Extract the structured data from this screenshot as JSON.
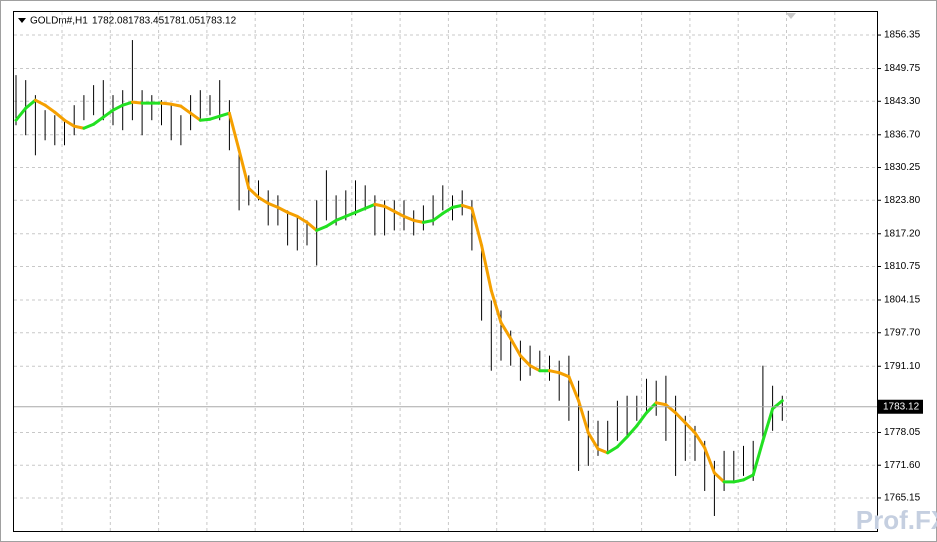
{
  "chart_data": {
    "type": "ohlc",
    "symbol": "GOLDm#,H1",
    "ohlc": [
      1782.08,
      1783.45,
      1781.05,
      1783.12
    ],
    "last_price": 1783.12,
    "watermark": "Prof.FX",
    "bar_color": "#000000",
    "up_color": "#22e022",
    "down_color": "#f5a000",
    "grid": true,
    "ylim": [
      1758.64,
      1860.89
    ],
    "yticks": [
      1856.35,
      1849.75,
      {
        "value": 1843.3,
        "label": "1843.30"
      },
      {
        "value": 1836.7,
        "label": "1836.70"
      },
      1830.25,
      {
        "value": 1823.8,
        "label": "1823.80"
      },
      {
        "value": 1817.2,
        "label": "1817.20"
      },
      1810.75,
      1804.15,
      {
        "value": 1797.7,
        "label": "1797.70"
      },
      {
        "value": 1791.1,
        "label": "1791.10"
      },
      1778.05,
      {
        "value": 1771.6,
        "label": "1771.60"
      },
      1765.15
    ],
    "high": [
      1848.45,
      1847.47,
      1844.51,
      1841.55,
      1840.56,
      1839.57,
      1842.53,
      1844.51,
      1846.48,
      1847.47,
      1844.51,
      1845.49,
      1855.36,
      1845.49,
      1844.51,
      1843.52,
      1842.53,
      1840.56,
      1844.51,
      1845.49,
      1844.51,
      1847.47,
      1843.52,
      1833.65,
      1828.71,
      1827.73,
      1825.75,
      1824.77,
      1821.81,
      1820.82,
      1819.83,
      1823.78,
      1829.7,
      1824.77,
      1825.75,
      1827.73,
      1826.74,
      1824.77,
      1823.78,
      1823.78,
      1823.78,
      1821.81,
      1822.79,
      1824.77,
      1826.74,
      1824.77,
      1825.75,
      1823.78,
      1813.91,
      1804.04,
      1802.07,
      1798.12,
      1796.14,
      1795.16,
      1794.17,
      1793.18,
      1792.2,
      1793.18,
      1788.25,
      1782.33,
      1780.35,
      1780.35,
      1784.3,
      1785.29,
      1785.29,
      1788.64,
      1788.25,
      1789.23,
      1785.29,
      1781.34,
      1779.36,
      1776.4,
      1772.46,
      1774.43,
      1774.43,
      1775.42,
      1776.4,
      1791.21,
      1787.26,
      1785.29
    ],
    "low": [
      1838.58,
      1836.61,
      1832.66,
      1835.62,
      1834.64,
      1834.64,
      1836.61,
      1839.57,
      1840.56,
      1839.57,
      1838.58,
      1837.6,
      1839.57,
      1836.61,
      1839.57,
      1838.58,
      1835.62,
      1834.64,
      1837.6,
      1839.57,
      1840.56,
      1839.57,
      1833.65,
      1821.81,
      1822.79,
      1823.78,
      1818.84,
      1818.84,
      1814.9,
      1813.91,
      1814.9,
      1810.95,
      1819.83,
      1818.84,
      1819.83,
      1820.82,
      1821.81,
      1816.87,
      1816.87,
      1817.86,
      1817.86,
      1816.87,
      1817.86,
      1818.84,
      1821.81,
      1819.83,
      1820.82,
      1813.91,
      1800.09,
      1790.22,
      1792.2,
      1791.21,
      1788.25,
      1789.23,
      1790.22,
      1788.25,
      1784.3,
      1780.35,
      1770.48,
      1771.47,
      1773.44,
      1774.43,
      1776.4,
      1777.39,
      1780.35,
      1782.33,
      1781.34,
      1776.4,
      1769.49,
      1772.46,
      1772.46,
      1766.53,
      1761.6,
      1766.53,
      1768.51,
      1769.49,
      1768.51,
      1776.4,
      1778.38,
      1780.35
    ],
    "ma": [
      1839.57,
      1841.94,
      1843.52,
      1842.53,
      1841.15,
      1839.57,
      1838.39,
      1837.99,
      1838.78,
      1840.16,
      1841.55,
      1842.53,
      1843.13,
      1842.93,
      1842.93,
      1842.93,
      1842.73,
      1842.34,
      1840.95,
      1839.57,
      1839.77,
      1840.36,
      1840.95,
      1833.65,
      1826.15,
      1824.37,
      1823.19,
      1822.4,
      1821.41,
      1820.62,
      1819.44,
      1817.86,
      1818.65,
      1819.83,
      1820.62,
      1821.41,
      1822.2,
      1822.99,
      1822.6,
      1821.61,
      1820.62,
      1819.83,
      1819.44,
      1819.83,
      1821.21,
      1822.4,
      1822.79,
      1822.2,
      1814.9,
      1806.01,
      1799.7,
      1796.54,
      1793.18,
      1791.21,
      1790.22,
      1790.22,
      1789.83,
      1789.04,
      1784.3,
      1777.98,
      1774.82,
      1774.04,
      1775.22,
      1777.19,
      1779.36,
      1781.93,
      1783.91,
      1783.51,
      1781.93,
      1779.96,
      1777.98,
      1775.02,
      1770.09,
      1768.31,
      1768.31,
      1768.71,
      1769.69,
      1776.4,
      1782.72,
      1784.3
    ]
  }
}
